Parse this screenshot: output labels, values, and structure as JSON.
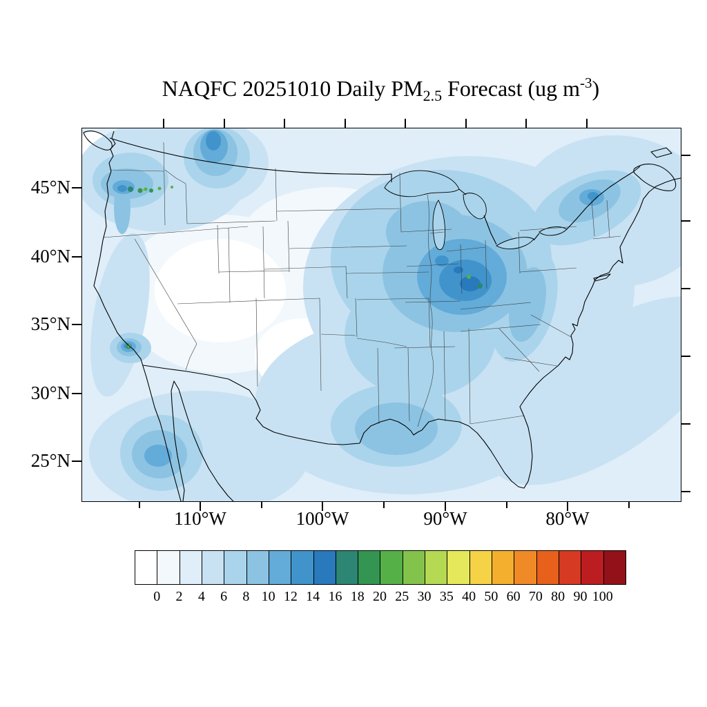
{
  "title": {
    "prefix": "NAQFC 20251010 Daily PM",
    "sub": "2.5",
    "mid": " Forecast (ug m",
    "sup": "-3",
    "suffix": ")"
  },
  "axes": {
    "y_ticks": [
      {
        "label": "45°N",
        "pos": 87
      },
      {
        "label": "40°N",
        "pos": 187
      },
      {
        "label": "35°N",
        "pos": 285
      },
      {
        "label": "30°N",
        "pos": 385
      },
      {
        "label": "25°N",
        "pos": 483
      }
    ],
    "x_ticks": [
      {
        "label": "110°W",
        "pos": 172
      },
      {
        "label": "100°W",
        "pos": 349
      },
      {
        "label": "90°W",
        "pos": 527
      },
      {
        "label": "80°W",
        "pos": 704
      }
    ],
    "x_minor": [
      84,
      261,
      438,
      616,
      793
    ],
    "top_ticks": [
      119,
      207,
      294,
      382,
      469,
      557,
      644,
      732
    ],
    "right_ticks": [
      40,
      135,
      233,
      331,
      429,
      527
    ]
  },
  "colorbar": {
    "labels": [
      "0",
      "2",
      "4",
      "6",
      "8",
      "10",
      "12",
      "14",
      "16",
      "18",
      "20",
      "25",
      "30",
      "35",
      "40",
      "50",
      "60",
      "70",
      "80",
      "90",
      "100"
    ],
    "colors": [
      "#FFFFFF",
      "#F2F8FC",
      "#DFEEF8",
      "#C8E2F3",
      "#AAD4EB",
      "#8CC3E2",
      "#63ABD8",
      "#4094CB",
      "#2979BD",
      "#2D8673",
      "#339551",
      "#55B047",
      "#83C34B",
      "#B5D952",
      "#E5E85A",
      "#F6D246",
      "#F5AF2F",
      "#F08A26",
      "#E7601C",
      "#D63A22",
      "#BC1D20",
      "#93121A"
    ]
  },
  "chart_data": {
    "type": "heatmap",
    "subtype": "filled-contour-geographic-map",
    "model": "NAQFC",
    "date": "20251010",
    "variable": "Daily PM2.5 Forecast",
    "units": "ug m-3",
    "title": "NAQFC 20251010 Daily PM2.5 Forecast (ug m-3)",
    "contour_levels": [
      0,
      2,
      4,
      6,
      8,
      10,
      12,
      14,
      16,
      18,
      20,
      25,
      30,
      35,
      40,
      50,
      60,
      70,
      80,
      90,
      100
    ],
    "lat_tick_labels": [
      "45°N",
      "40°N",
      "35°N",
      "30°N",
      "25°N"
    ],
    "lon_tick_labels": [
      "110°W",
      "100°W",
      "90°W",
      "80°W"
    ],
    "region": "Continental United States (CONUS) with parts of Canada and Mexico",
    "legend_position": "bottom",
    "estimated_features": [
      {
        "region": "Midwest core (Illinois/Indiana/Ohio valley)",
        "approx_value_ug_m3": "10-16, small spots 16-20"
      },
      {
        "region": "Upper Midwest background (MN/WI/IA/MO)",
        "approx_value_ug_m3": "6-10"
      },
      {
        "region": "Montana plume near Canadian border",
        "approx_value_ug_m3": "8-14"
      },
      {
        "region": "Washington / northern Idaho spots",
        "approx_value_ug_m3": "10-25 isolated green maxima"
      },
      {
        "region": "Southern California (Los Angeles basin)",
        "approx_value_ug_m3": "10-25 isolated green maxima"
      },
      {
        "region": "Upstate New York / Lake Ontario area",
        "approx_value_ug_m3": "8-14"
      },
      {
        "region": "Appalachians / Southeast band",
        "approx_value_ug_m3": "6-10"
      },
      {
        "region": "Texas Gulf coast and offshore",
        "approx_value_ug_m3": "6-10"
      },
      {
        "region": "Pacific offshore Baja blob",
        "approx_value_ug_m3": "6-10"
      },
      {
        "region": "Interior West (Great Basin / Rockies / west Texas)",
        "approx_value_ug_m3": "0-2"
      },
      {
        "region": "General background CONUS and oceans",
        "approx_value_ug_m3": "2-6"
      }
    ]
  }
}
